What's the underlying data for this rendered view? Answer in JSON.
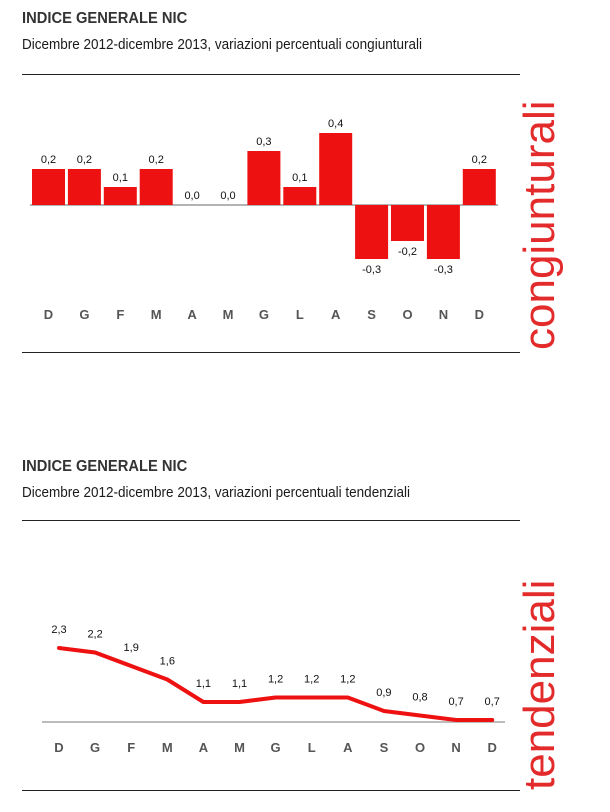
{
  "colors": {
    "accent": "#ee1111",
    "side_text": "#e32b2b"
  },
  "charts": [
    {
      "title": "INDICE GENERALE NIC",
      "subtitle": "Dicembre 2012-dicembre 2013, variazioni percentuali congiunturali",
      "side_label": "congiunturali"
    },
    {
      "title": "INDICE GENERALE NIC",
      "subtitle": "Dicembre 2012-dicembre 2013, variazioni percentuali tendenziali",
      "side_label": "tendenziali"
    }
  ],
  "chart_data": [
    {
      "type": "bar",
      "categories": [
        "D",
        "G",
        "F",
        "M",
        "A",
        "M",
        "G",
        "L",
        "A",
        "S",
        "O",
        "N",
        "D"
      ],
      "values": [
        0.2,
        0.2,
        0.1,
        0.2,
        0.0,
        0.0,
        0.3,
        0.1,
        0.4,
        -0.3,
        -0.2,
        -0.3,
        0.2
      ],
      "value_labels": [
        "0,2",
        "0,2",
        "0,1",
        "0,2",
        "0,0",
        "0,0",
        "0,3",
        "0,1",
        "0,4",
        "-0,3",
        "-0,2",
        "-0,3",
        "0,2"
      ],
      "title": "INDICE GENERALE NIC",
      "ylim": [
        -0.6,
        0.5
      ],
      "grid": false,
      "color": "#ee1111"
    },
    {
      "type": "line",
      "categories": [
        "D",
        "G",
        "F",
        "M",
        "A",
        "M",
        "G",
        "L",
        "A",
        "S",
        "O",
        "N",
        "D"
      ],
      "values": [
        2.3,
        2.2,
        1.9,
        1.6,
        1.1,
        1.1,
        1.2,
        1.2,
        1.2,
        0.9,
        0.8,
        0.7,
        0.7
      ],
      "value_labels": [
        "2,3",
        "2,2",
        "1,9",
        "1,6",
        "1,1",
        "1,1",
        "1,2",
        "1,2",
        "1,2",
        "0,9",
        "0,8",
        "0,7",
        "0,7"
      ],
      "title": "INDICE GENERALE NIC",
      "ylim": [
        0,
        2.8
      ],
      "grid": false,
      "color": "#ee1111"
    }
  ]
}
